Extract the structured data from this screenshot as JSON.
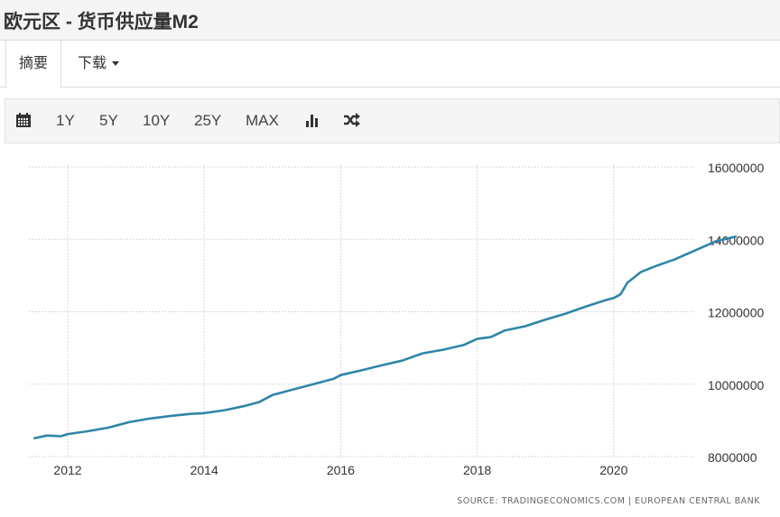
{
  "header": {
    "title": "欧元区 - 货币供应量M2"
  },
  "tabs": [
    {
      "label": "摘要",
      "active": true
    },
    {
      "label": "下载",
      "dropdown": true
    }
  ],
  "toolbar": {
    "calendar_icon": "calendar-icon",
    "ranges": [
      "1Y",
      "5Y",
      "10Y",
      "25Y",
      "MAX"
    ],
    "chart_type_icon": "bar-chart-icon",
    "compare_icon": "shuffle-icon"
  },
  "colors": {
    "line": "#2e86a8",
    "grid": "#cccccc",
    "text": "#333333"
  },
  "source": "SOURCE: TRADINGECONOMICS.COM  |  EUROPEAN CENTRAL BANK",
  "chart_data": {
    "type": "line",
    "title": "欧元区 - 货币供应量M2",
    "xlabel": "",
    "ylabel": "",
    "x_ticks": [
      "2012",
      "2014",
      "2016",
      "2018",
      "2020"
    ],
    "y_ticks": [
      "8000000",
      "10000000",
      "12000000",
      "14000000",
      "16000000"
    ],
    "ylim": [
      8000000,
      16000000
    ],
    "xlim": [
      2011.5,
      2021.9
    ],
    "grid": true,
    "y_axis_position": "right",
    "series": [
      {
        "name": "M2",
        "x": [
          2011.5,
          2011.7,
          2011.9,
          2012.0,
          2012.3,
          2012.6,
          2012.9,
          2013.2,
          2013.5,
          2013.8,
          2014.0,
          2014.3,
          2014.6,
          2014.8,
          2015.0,
          2015.3,
          2015.6,
          2015.9,
          2016.0,
          2016.3,
          2016.6,
          2016.9,
          2017.2,
          2017.5,
          2017.8,
          2018.0,
          2018.2,
          2018.4,
          2018.7,
          2019.0,
          2019.3,
          2019.6,
          2019.9,
          2020.0,
          2020.1,
          2020.2,
          2020.4,
          2020.6,
          2020.9,
          2021.2,
          2021.5,
          2021.8
        ],
        "values": [
          8500000,
          8580000,
          8560000,
          8620000,
          8700000,
          8800000,
          8950000,
          9050000,
          9120000,
          9180000,
          9200000,
          9280000,
          9400000,
          9500000,
          9700000,
          9850000,
          10000000,
          10150000,
          10250000,
          10380000,
          10520000,
          10650000,
          10850000,
          10950000,
          11080000,
          11250000,
          11300000,
          11480000,
          11600000,
          11780000,
          11950000,
          12150000,
          12330000,
          12380000,
          12480000,
          12800000,
          13100000,
          13250000,
          13450000,
          13700000,
          13950000,
          14080000
        ]
      }
    ]
  }
}
